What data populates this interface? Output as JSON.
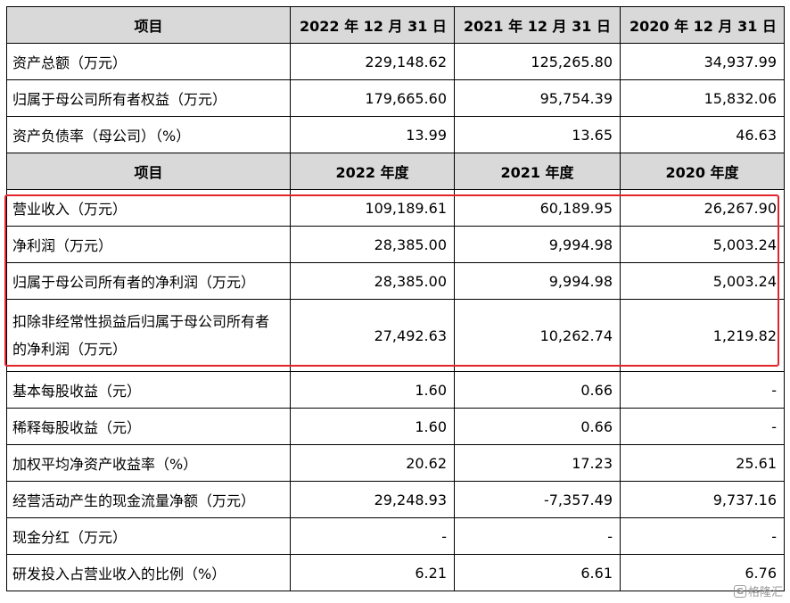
{
  "header1": {
    "item": "项目",
    "c1": "2022 年 12 月 31 日",
    "c2": "2021 年 12 月 31 日",
    "c3": "2020 年 12 月 31 日"
  },
  "section1": [
    {
      "label": "资产总额（万元）",
      "v1": "229,148.62",
      "v2": "125,265.80",
      "v3": "34,937.99"
    },
    {
      "label": "归属于母公司所有者权益（万元）",
      "v1": "179,665.60",
      "v2": "95,754.39",
      "v3": "15,832.06"
    },
    {
      "label": "资产负债率（母公司）（%）",
      "v1": "13.99",
      "v2": "13.65",
      "v3": "46.63"
    }
  ],
  "header2": {
    "item": "项目",
    "c1": "2022 年度",
    "c2": "2021 年度",
    "c3": "2020 年度"
  },
  "section2": [
    {
      "label": "营业收入（万元）",
      "v1": "109,189.61",
      "v2": "60,189.95",
      "v3": "26,267.90"
    },
    {
      "label": "净利润（万元）",
      "v1": "28,385.00",
      "v2": "9,994.98",
      "v3": "5,003.24"
    },
    {
      "label": "归属于母公司所有者的净利润（万元）",
      "v1": "28,385.00",
      "v2": "9,994.98",
      "v3": "5,003.24"
    },
    {
      "label": "扣除非经常性损益后归属于母公司所有者的净利润（万元）",
      "v1": "27,492.63",
      "v2": "10,262.74",
      "v3": "1,219.82"
    },
    {
      "label": "基本每股收益（元）",
      "v1": "1.60",
      "v2": "0.66",
      "v3": "-"
    },
    {
      "label": "稀释每股收益（元）",
      "v1": "1.60",
      "v2": "0.66",
      "v3": "-"
    },
    {
      "label": "加权平均净资产收益率（%）",
      "v1": "20.62",
      "v2": "17.23",
      "v3": "25.61"
    },
    {
      "label": "经营活动产生的现金流量净额（万元）",
      "v1": "29,248.93",
      "v2": "-7,357.49",
      "v3": "9,737.16"
    },
    {
      "label": "现金分红（万元）",
      "v1": "-",
      "v2": "-",
      "v3": "-"
    },
    {
      "label": "研发投入占营业收入的比例（%）",
      "v1": "6.21",
      "v2": "6.61",
      "v3": "6.76"
    }
  ],
  "watermark": {
    "text": "格隆汇",
    "logo": "G"
  },
  "highlight_color": "#e3242b"
}
